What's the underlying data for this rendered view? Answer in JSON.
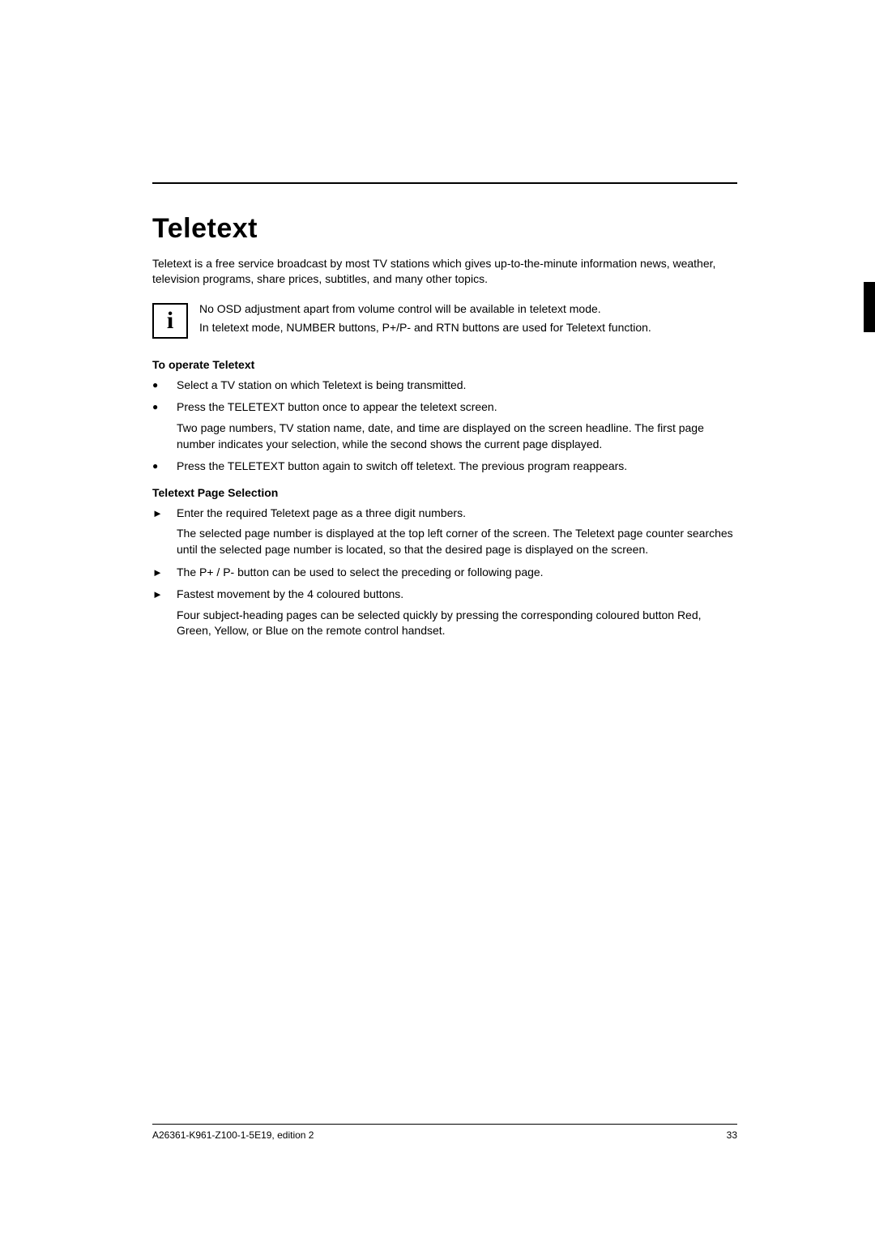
{
  "title": "Teletext",
  "intro": "Teletext is a free service broadcast by most TV stations which gives up-to-the-minute information news, weather, television programs, share prices, subtitles, and many other topics.",
  "info_note": {
    "line1": "No OSD adjustment apart from volume control will be available in teletext mode.",
    "line2": "In teletext mode, NUMBER buttons, P+/P- and RTN buttons are used for Teletext function."
  },
  "section1": {
    "heading": "To operate Teletext",
    "items": [
      {
        "p1": "Select a TV station on which Teletext is being transmitted."
      },
      {
        "p1": "Press the TELETEXT button once to appear the teletext screen.",
        "p2": "Two page numbers, TV station name, date, and time are displayed on the screen headline. The first page number indicates your selection, while the second shows the current page displayed."
      },
      {
        "p1": "Press the TELETEXT button again to switch off teletext. The previous program reappears."
      }
    ]
  },
  "section2": {
    "heading": "Teletext Page Selection",
    "items": [
      {
        "p1": "Enter the required Teletext page as a three digit numbers.",
        "p2": "The selected page number is displayed at the top left corner of the screen. The Teletext page counter searches until the selected page number is located, so that the desired page is displayed on the screen."
      },
      {
        "p1": "The P+ / P- button can be used to select the preceding or following page."
      },
      {
        "p1": "Fastest movement by the 4 coloured buttons.",
        "p2": "Four subject-heading pages can be selected quickly by pressing the corresponding coloured button Red, Green, Yellow, or Blue on the remote control handset."
      }
    ]
  },
  "footer": {
    "doc_id": "A26361-K961-Z100-1-5E19, edition 2",
    "page_no": "33"
  },
  "markers": {
    "bullet": "●",
    "arrow": "►",
    "info_glyph": "i"
  }
}
